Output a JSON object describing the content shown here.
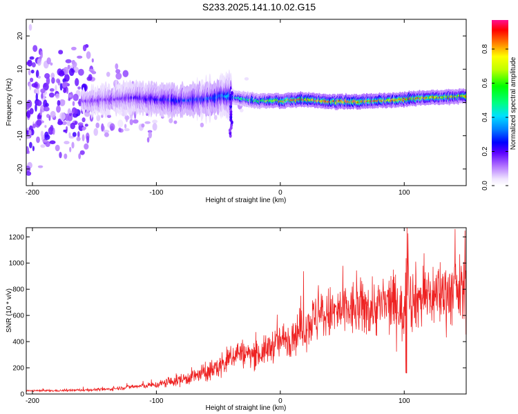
{
  "title": "S233.2025.141.10.02.G15",
  "chart_data": [
    {
      "type": "heatmap",
      "xlabel": "Height of straight line (km)",
      "ylabel": "Frequency (Hz)",
      "xlim": [
        -205,
        150
      ],
      "ylim": [
        -25,
        25
      ],
      "x_ticks": [
        -200,
        -100,
        0,
        100
      ],
      "y_ticks": [
        -20,
        -10,
        0,
        10,
        20
      ],
      "colorbar": {
        "label": "Normalized spectral amplitude",
        "range": [
          0,
          0.97
        ],
        "ticks": [
          "0.0",
          "0.2",
          "0.4",
          "0.6",
          "0.8"
        ]
      },
      "ridge": {
        "description_points_x": [
          -150,
          -120,
          -100,
          -80,
          -60,
          -45,
          -35,
          -20,
          0,
          20,
          40,
          60,
          80,
          100,
          120,
          150
        ],
        "center_freq": [
          0.5,
          1.5,
          1.0,
          0.5,
          1.0,
          2.0,
          1.5,
          0.5,
          0.5,
          0.8,
          0.3,
          0.2,
          0.5,
          1.0,
          1.5,
          1.8
        ],
        "peak_amplitude": [
          0.15,
          0.2,
          0.25,
          0.28,
          0.3,
          0.35,
          0.5,
          0.6,
          0.85,
          0.9,
          0.9,
          0.95,
          0.9,
          0.9,
          0.85,
          0.8
        ]
      }
    },
    {
      "type": "line",
      "xlabel": "Height of straight line (km)",
      "ylabel": "SNR (10 * v/v)",
      "xlim": [
        -205,
        150
      ],
      "ylim": [
        0,
        1270
      ],
      "x_ticks": [
        -200,
        -100,
        0,
        100
      ],
      "y_ticks": [
        0,
        200,
        400,
        600,
        800,
        1000,
        1200
      ],
      "color": "#ee2222",
      "series": [
        {
          "x": [
            -205,
            -180,
            -160,
            -140,
            -120,
            -100,
            -80,
            -60,
            -45,
            -35,
            -25,
            -15,
            -5,
            5,
            15,
            25,
            35,
            45,
            55,
            65,
            75,
            85,
            95,
            100,
            102,
            105,
            115,
            125,
            135,
            150
          ],
          "y": [
            25,
            25,
            30,
            35,
            55,
            70,
            110,
            160,
            230,
            320,
            300,
            310,
            380,
            420,
            480,
            560,
            600,
            620,
            640,
            650,
            660,
            680,
            700,
            560,
            1200,
            720,
            740,
            760,
            780,
            790
          ]
        }
      ]
    }
  ]
}
